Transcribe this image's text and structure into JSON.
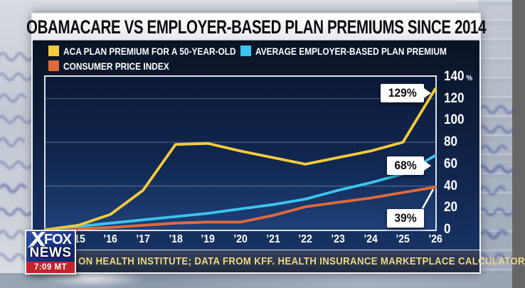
{
  "headline": "OBAMACARE VS EMPLOYER-BASED PLAN PREMIUMS SINCE 2014",
  "colors": {
    "aca_yellow": "#f3cb3a",
    "employer_cyan": "#3bc4ef",
    "cpi_orange": "#e2693b",
    "panel_navy": "#102142",
    "ticker_gold": "#ecd97f",
    "fox_red": "#c5232b",
    "logo_blue": "#16307b",
    "callout_white": "#ffffff"
  },
  "chart_data": {
    "type": "line",
    "title": "OBAMACARE VS EMPLOYER-BASED PLAN PREMIUMS SINCE 2014",
    "x": [
      2014,
      2015,
      2016,
      2017,
      2018,
      2019,
      2020,
      2021,
      2022,
      2023,
      2024,
      2025,
      2026
    ],
    "x_labels": [
      {
        "year": 2015,
        "label": "’15"
      },
      {
        "year": 2016,
        "label": "’16"
      },
      {
        "year": 2017,
        "label": "’17"
      },
      {
        "year": 2018,
        "label": "’18"
      },
      {
        "year": 2019,
        "label": "’19"
      },
      {
        "year": 2020,
        "label": "’20"
      },
      {
        "year": 2021,
        "label": "’21"
      },
      {
        "year": 2022,
        "label": "’22"
      },
      {
        "year": 2023,
        "label": "’23"
      },
      {
        "year": 2024,
        "label": "’24"
      },
      {
        "year": 2025,
        "label": "’25"
      },
      {
        "year": 2026,
        "label": "’26"
      }
    ],
    "ylim": [
      0,
      140
    ],
    "y_ticks": [
      140,
      120,
      100,
      80,
      60,
      40,
      20,
      0
    ],
    "y_unit": "%",
    "gridlines": [
      40,
      80,
      120
    ],
    "legend_position": "top-left",
    "grid": true,
    "series": [
      {
        "id": "aca-plan-premium",
        "name": "ACA PLAN PREMIUM FOR A 50-YEAR-OLD",
        "color": "#f3cb3a",
        "values": [
          0,
          4,
          14,
          36,
          78,
          79,
          72,
          66,
          60,
          66,
          72,
          80,
          129
        ]
      },
      {
        "id": "employer-plan-premium",
        "name": "AVERAGE EMPLOYER-BASED PLAN PREMIUM",
        "color": "#3bc4ef",
        "values": [
          0,
          3,
          6,
          9,
          12,
          15,
          19,
          23,
          28,
          36,
          43,
          51,
          68
        ]
      },
      {
        "id": "consumer-price-index",
        "name": "CONSUMER PRICE INDEX",
        "color": "#e2693b",
        "values": [
          0,
          1,
          2,
          4,
          6,
          7,
          7,
          13,
          21,
          25,
          29,
          34,
          39
        ]
      }
    ],
    "callouts": [
      {
        "label": "129%",
        "value": 129,
        "series": "aca-plan-premium",
        "pointer": "right"
      },
      {
        "label": "68%",
        "value": 68,
        "series": "employer-plan-premium",
        "pointer": "right"
      },
      {
        "label": "39%",
        "value": 39,
        "series": "consumer-price-index",
        "pointer": "diagonal"
      }
    ]
  },
  "ticker": {
    "text": "ON HEALTH INSTITUTE; DATA FROM KFF. HEALTH INSURANCE MARKETPLACE CALCULATOR"
  },
  "logo": {
    "line1": "FOX",
    "line2": "NEWS",
    "timestamp": "7:09 MT"
  }
}
